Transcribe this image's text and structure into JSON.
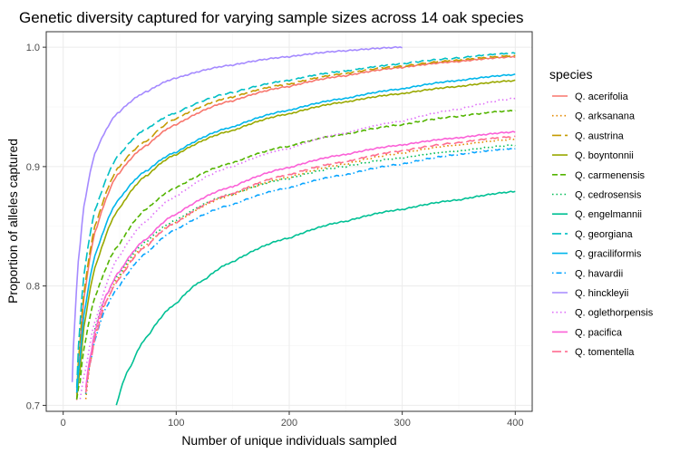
{
  "chart_data": {
    "type": "line",
    "title": "Genetic diversity captured for varying sample sizes across 14 oak species",
    "xlabel": "Number of unique individuals sampled",
    "ylabel": "Proportion of alleles captured",
    "xlim": [
      -15,
      415
    ],
    "ylim": [
      0.695,
      1.013
    ],
    "xticks": [
      0,
      100,
      200,
      300,
      400
    ],
    "xtick_labels": [
      "0",
      "100",
      "200",
      "300",
      "400"
    ],
    "yticks": [
      0.7,
      0.8,
      0.9,
      1.0
    ],
    "ytick_labels": [
      "0.7",
      "0.8",
      "0.9",
      "1.0"
    ],
    "grid": true,
    "legend": {
      "title": "species",
      "position": "right"
    },
    "series": [
      {
        "name": "Q. acerifolia",
        "color": "#F8766D",
        "dash": "solid",
        "x": [
          12,
          15,
          20,
          30,
          50,
          75,
          100,
          150,
          200,
          250,
          300,
          350,
          400
        ],
        "y": [
          0.705,
          0.75,
          0.8,
          0.85,
          0.895,
          0.918,
          0.935,
          0.955,
          0.967,
          0.976,
          0.983,
          0.988,
          0.992
        ]
      },
      {
        "name": "Q. arksanana",
        "color": "#E38900",
        "dash": "dotted",
        "x": [
          20,
          25,
          30,
          40,
          50,
          75,
          100,
          150,
          200,
          250,
          300,
          350,
          400
        ],
        "y": [
          0.705,
          0.74,
          0.765,
          0.79,
          0.808,
          0.835,
          0.853,
          0.876,
          0.891,
          0.902,
          0.911,
          0.918,
          0.923
        ]
      },
      {
        "name": "Q. austrina",
        "color": "#C49A00",
        "dash": "longdash",
        "x": [
          12,
          15,
          20,
          30,
          50,
          75,
          100,
          150,
          200,
          250,
          300,
          350,
          400
        ],
        "y": [
          0.71,
          0.755,
          0.805,
          0.855,
          0.9,
          0.922,
          0.94,
          0.958,
          0.969,
          0.978,
          0.984,
          0.989,
          0.993
        ]
      },
      {
        "name": "Q. boyntonnii",
        "color": "#99A800",
        "dash": "solid",
        "x": [
          12,
          15,
          20,
          30,
          50,
          75,
          100,
          150,
          200,
          250,
          300,
          350,
          400
        ],
        "y": [
          0.705,
          0.73,
          0.775,
          0.82,
          0.865,
          0.893,
          0.91,
          0.93,
          0.944,
          0.954,
          0.961,
          0.967,
          0.972
        ]
      },
      {
        "name": "Q. carmenensis",
        "color": "#53B400",
        "dash": "dashed",
        "x": [
          12,
          15,
          20,
          30,
          50,
          75,
          100,
          150,
          200,
          250,
          300,
          350,
          400
        ],
        "y": [
          0.705,
          0.72,
          0.755,
          0.795,
          0.835,
          0.865,
          0.882,
          0.903,
          0.917,
          0.927,
          0.935,
          0.942,
          0.947
        ]
      },
      {
        "name": "Q. cedrosensis",
        "color": "#00BC56",
        "dash": "dotted",
        "x": [
          20,
          25,
          30,
          40,
          50,
          75,
          100,
          150,
          200,
          250,
          300,
          350,
          400
        ],
        "y": [
          0.71,
          0.745,
          0.77,
          0.795,
          0.81,
          0.838,
          0.855,
          0.877,
          0.89,
          0.9,
          0.907,
          0.913,
          0.918
        ]
      },
      {
        "name": "Q. engelmannii",
        "color": "#00C094",
        "dash": "solid",
        "x": [
          47,
          60,
          75,
          100,
          125,
          150,
          200,
          250,
          300,
          350,
          400
        ],
        "y": [
          0.7,
          0.733,
          0.758,
          0.785,
          0.805,
          0.82,
          0.84,
          0.854,
          0.864,
          0.872,
          0.879
        ]
      },
      {
        "name": "Q. georgiana",
        "color": "#00BFC4",
        "dash": "longdash",
        "x": [
          12,
          15,
          20,
          30,
          50,
          75,
          100,
          150,
          200,
          250,
          300,
          350,
          400
        ],
        "y": [
          0.715,
          0.77,
          0.82,
          0.868,
          0.91,
          0.932,
          0.945,
          0.962,
          0.972,
          0.98,
          0.986,
          0.991,
          0.995
        ]
      },
      {
        "name": "Q. graciliformis",
        "color": "#00B6EB",
        "dash": "solid",
        "x": [
          12,
          15,
          20,
          30,
          50,
          75,
          100,
          150,
          200,
          250,
          300,
          350,
          400
        ],
        "y": [
          0.71,
          0.74,
          0.785,
          0.83,
          0.873,
          0.897,
          0.912,
          0.933,
          0.947,
          0.957,
          0.965,
          0.972,
          0.977
        ]
      },
      {
        "name": "Q. havardii",
        "color": "#06A4FF",
        "dash": "dotdash",
        "x": [
          20,
          25,
          30,
          40,
          50,
          75,
          100,
          150,
          200,
          250,
          300,
          350,
          400
        ],
        "y": [
          0.71,
          0.74,
          0.76,
          0.785,
          0.8,
          0.828,
          0.847,
          0.868,
          0.882,
          0.893,
          0.902,
          0.91,
          0.915
        ]
      },
      {
        "name": "Q. hinckleyii",
        "color": "#A58AFF",
        "dash": "solid",
        "x": [
          8,
          10,
          15,
          20,
          30,
          50,
          75,
          100,
          150,
          200,
          250,
          300
        ],
        "y": [
          0.72,
          0.765,
          0.835,
          0.875,
          0.915,
          0.946,
          0.963,
          0.974,
          0.985,
          0.992,
          0.997,
          1.0
        ]
      },
      {
        "name": "Q. oglethorpensis",
        "color": "#DF70F8",
        "dash": "dotted",
        "x": [
          15,
          20,
          30,
          50,
          75,
          100,
          150,
          200,
          250,
          300,
          350,
          400
        ],
        "y": [
          0.705,
          0.73,
          0.775,
          0.825,
          0.855,
          0.875,
          0.9,
          0.915,
          0.928,
          0.938,
          0.948,
          0.957
        ]
      },
      {
        "name": "Q. pacifica",
        "color": "#FB61D7",
        "dash": "solid",
        "x": [
          20,
          25,
          30,
          40,
          50,
          75,
          100,
          150,
          200,
          250,
          300,
          350,
          400
        ],
        "y": [
          0.715,
          0.745,
          0.768,
          0.795,
          0.812,
          0.84,
          0.86,
          0.883,
          0.899,
          0.91,
          0.918,
          0.924,
          0.929
        ]
      },
      {
        "name": "Q. tomentella",
        "color": "#FF6C91",
        "dash": "longdash",
        "x": [
          20,
          25,
          30,
          40,
          50,
          75,
          100,
          150,
          200,
          250,
          300,
          350,
          400
        ],
        "y": [
          0.71,
          0.74,
          0.762,
          0.79,
          0.806,
          0.834,
          0.853,
          0.877,
          0.893,
          0.904,
          0.913,
          0.92,
          0.925
        ]
      }
    ]
  }
}
